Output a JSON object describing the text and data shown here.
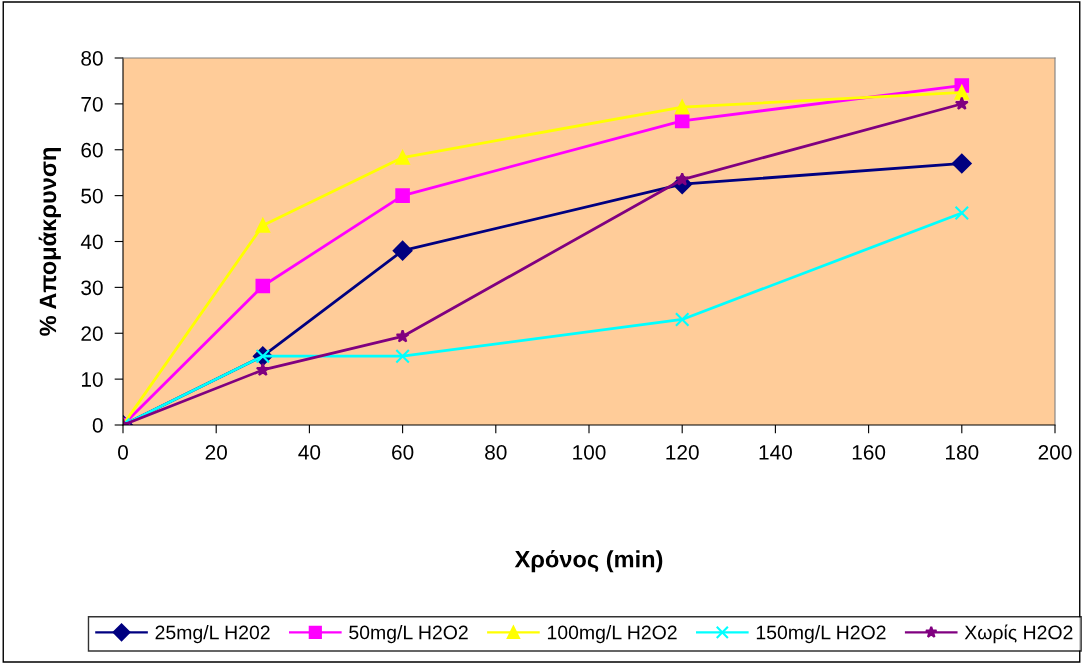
{
  "chart_data": {
    "type": "line",
    "xlabel": "Χρόνος (min)",
    "ylabel": "% Απομάκρυνση",
    "x": [
      0,
      30,
      60,
      120,
      180
    ],
    "xlim": [
      0,
      200
    ],
    "xticks": [
      0,
      20,
      40,
      60,
      80,
      100,
      120,
      140,
      160,
      180,
      200
    ],
    "ylim": [
      0,
      80
    ],
    "yticks": [
      0,
      10,
      20,
      30,
      40,
      50,
      60,
      70,
      80
    ],
    "grid": false,
    "legend": "bottom",
    "line_style": "solid",
    "series": [
      {
        "name": "25mg/L H202",
        "color": "#000080",
        "marker": "diamond",
        "values": [
          0,
          15,
          38,
          52.5,
          57
        ]
      },
      {
        "name": "50mg/L H2O2",
        "color": "#ff00ff",
        "marker": "square",
        "values": [
          0,
          30.3,
          50,
          66.3,
          74
        ]
      },
      {
        "name": "100mg/L H2O2",
        "color": "#ffff00",
        "marker": "triangle",
        "values": [
          0,
          43.5,
          58.3,
          69.3,
          72.5
        ]
      },
      {
        "name": "150mg/L H2O2",
        "color": "#00ffff",
        "marker": "cross",
        "values": [
          0,
          15,
          15,
          23,
          46.2
        ]
      },
      {
        "name": "Χωρίς H2O2",
        "color": "#800080",
        "marker": "star",
        "values": [
          0,
          12,
          19.3,
          53.5,
          70
        ]
      }
    ]
  }
}
